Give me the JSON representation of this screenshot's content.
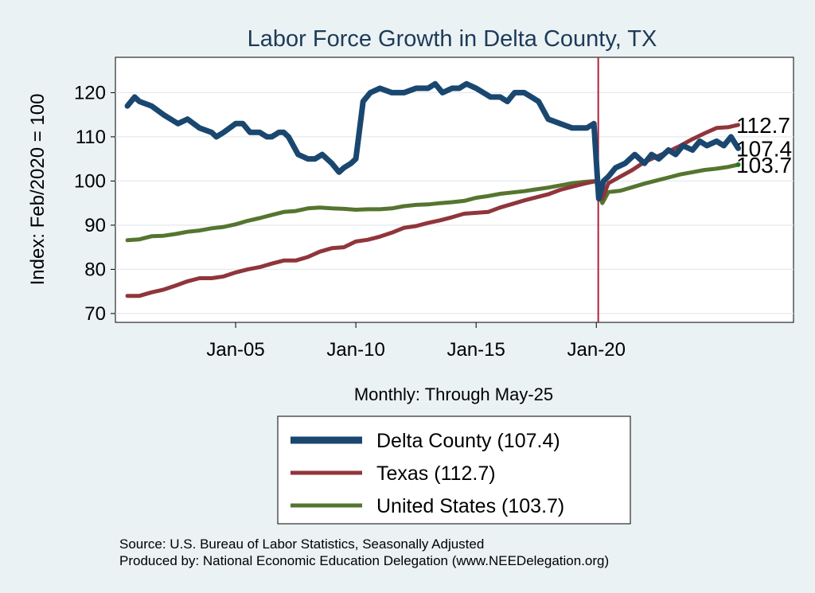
{
  "chart_data": {
    "type": "line",
    "title": "Labor Force Growth in Delta  County, TX",
    "ylabel": "Index: Feb/2020 = 100",
    "xlabel": "Monthly: Through May-25",
    "ylim": [
      68,
      128
    ],
    "xlim": [
      2000.0,
      2028.2
    ],
    "yticks": [
      70,
      80,
      90,
      100,
      110,
      120
    ],
    "xticks": [
      {
        "label": "Jan-05",
        "value": 2005
      },
      {
        "label": "Jan-10",
        "value": 2010
      },
      {
        "label": "Jan-15",
        "value": 2015
      },
      {
        "label": "Jan-20",
        "value": 2020
      }
    ],
    "reference_line": {
      "x": 2020.08
    },
    "series": [
      {
        "name": "Delta  County",
        "legend": "Delta  County (107.4)",
        "end_label": "107.4",
        "color": "#1a476f",
        "width": 7,
        "x": [
          2000.5,
          2000.8,
          2001.0,
          2001.5,
          2002.0,
          2002.3,
          2002.6,
          2003.0,
          2003.5,
          2004.0,
          2004.2,
          2004.5,
          2005.0,
          2005.3,
          2005.6,
          2006.0,
          2006.3,
          2006.5,
          2006.8,
          2007.0,
          2007.2,
          2007.6,
          2008.0,
          2008.3,
          2008.6,
          2009.0,
          2009.3,
          2009.5,
          2009.8,
          2010.0,
          2010.3,
          2010.6,
          2011.0,
          2011.5,
          2012.0,
          2012.5,
          2013.0,
          2013.3,
          2013.6,
          2014.0,
          2014.3,
          2014.6,
          2015.0,
          2015.3,
          2015.6,
          2016.0,
          2016.3,
          2016.6,
          2017.0,
          2017.3,
          2017.6,
          2018.0,
          2018.5,
          2019.0,
          2019.3,
          2019.6,
          2019.9,
          2020.1,
          2020.3,
          2020.5,
          2020.8,
          2021.2,
          2021.6,
          2022.0,
          2022.3,
          2022.6,
          2023.0,
          2023.3,
          2023.6,
          2024.0,
          2024.3,
          2024.6,
          2025.0,
          2025.3,
          2025.6,
          2025.9
        ],
        "y": [
          117,
          119,
          118,
          117,
          115,
          114,
          113,
          114,
          112,
          111,
          110,
          111,
          113,
          113,
          111,
          111,
          110,
          110,
          111,
          111,
          110,
          106,
          105,
          105,
          106,
          104,
          102,
          103,
          104,
          105,
          118,
          120,
          121,
          120,
          120,
          121,
          121,
          122,
          120,
          121,
          121,
          122,
          121,
          120,
          119,
          119,
          118,
          120,
          120,
          119,
          118,
          114,
          113,
          112,
          112,
          112,
          113,
          96,
          100,
          101,
          103,
          104,
          106,
          104,
          106,
          105,
          107,
          106,
          108,
          107,
          109,
          108,
          109,
          108,
          110,
          107.4
        ]
      },
      {
        "name": "Texas",
        "legend": "Texas (112.7)",
        "end_label": "112.7",
        "color": "#90353b",
        "width": 5,
        "x": [
          2000.5,
          2001.0,
          2001.5,
          2002.0,
          2002.5,
          2003.0,
          2003.5,
          2004.0,
          2004.5,
          2005.0,
          2005.5,
          2006.0,
          2006.5,
          2007.0,
          2007.5,
          2008.0,
          2008.5,
          2009.0,
          2009.5,
          2010.0,
          2010.5,
          2011.0,
          2011.5,
          2012.0,
          2012.5,
          2013.0,
          2013.5,
          2014.0,
          2014.5,
          2015.0,
          2015.5,
          2016.0,
          2016.5,
          2017.0,
          2017.5,
          2018.0,
          2018.5,
          2019.0,
          2019.5,
          2020.0,
          2020.1,
          2020.25,
          2020.5,
          2021.0,
          2021.5,
          2022.0,
          2022.5,
          2023.0,
          2023.5,
          2024.0,
          2024.5,
          2025.0,
          2025.5,
          2025.9
        ],
        "y": [
          74,
          74,
          74.8,
          75.4,
          76.3,
          77.3,
          78,
          78,
          78.4,
          79.3,
          80,
          80.5,
          81.3,
          82,
          82,
          82.8,
          84,
          84.8,
          85,
          86.3,
          86.7,
          87.4,
          88.3,
          89.4,
          89.8,
          90.5,
          91.1,
          91.8,
          92.6,
          92.8,
          93,
          94,
          94.8,
          95.6,
          96.3,
          97,
          98,
          98.7,
          99.4,
          100,
          97,
          96,
          99.5,
          101,
          102.5,
          104.3,
          105.5,
          106.7,
          108,
          109.5,
          110.8,
          112,
          112.2,
          112.7
        ]
      },
      {
        "name": "United States",
        "legend": "United States (103.7)",
        "end_label": "103.7",
        "color": "#55752f",
        "width": 5,
        "x": [
          2000.5,
          2001.0,
          2001.5,
          2002.0,
          2002.5,
          2003.0,
          2003.5,
          2004.0,
          2004.5,
          2005.0,
          2005.5,
          2006.0,
          2006.5,
          2007.0,
          2007.5,
          2008.0,
          2008.5,
          2009.0,
          2009.5,
          2010.0,
          2010.5,
          2011.0,
          2011.5,
          2012.0,
          2012.5,
          2013.0,
          2013.5,
          2014.0,
          2014.5,
          2015.0,
          2015.5,
          2016.0,
          2016.5,
          2017.0,
          2017.5,
          2018.0,
          2018.5,
          2019.0,
          2019.5,
          2020.0,
          2020.1,
          2020.25,
          2020.5,
          2021.0,
          2021.5,
          2022.0,
          2022.5,
          2023.0,
          2023.5,
          2024.0,
          2024.5,
          2025.0,
          2025.5,
          2025.9
        ],
        "y": [
          86.6,
          86.8,
          87.5,
          87.6,
          88,
          88.5,
          88.8,
          89.3,
          89.6,
          90.2,
          91,
          91.6,
          92.3,
          93,
          93.2,
          93.8,
          94,
          93.8,
          93.7,
          93.5,
          93.6,
          93.6,
          93.8,
          94.3,
          94.6,
          94.7,
          95,
          95.2,
          95.5,
          96.2,
          96.6,
          97.1,
          97.4,
          97.7,
          98.1,
          98.5,
          99,
          99.5,
          99.8,
          100,
          97,
          95,
          97.5,
          97.8,
          98.6,
          99.4,
          100.1,
          100.8,
          101.5,
          102,
          102.5,
          102.8,
          103.2,
          103.7
        ]
      }
    ]
  },
  "footer": {
    "source": "Source: U.S. Bureau of Labor Statistics, Seasonally Adjusted",
    "producer": "Produced by: National Economic Education Delegation (www.NEEDelegation.org)"
  }
}
